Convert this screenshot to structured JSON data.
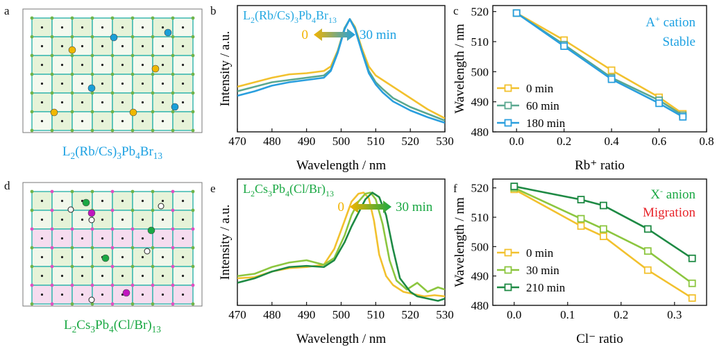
{
  "panels": {
    "a": {
      "label": "a",
      "caption_parts": [
        "L",
        "2",
        "(Rb/Cs)",
        "3",
        "Pb",
        "4",
        "Br",
        "13"
      ],
      "caption_color": "#1da1e2"
    },
    "d": {
      "label": "d",
      "caption_parts": [
        "L",
        "2",
        "Cs",
        "3",
        "Pb",
        "4",
        "(Cl/Br)",
        "13"
      ],
      "caption_color": "#1aa843"
    },
    "b": {
      "label": "b",
      "title_parts": [
        "L",
        "2",
        "(Rb/Cs)",
        "3",
        "Pb",
        "4",
        "Br",
        "13"
      ],
      "title_color": "#27a9e1",
      "arrow_start": "0",
      "arrow_end": "30 min",
      "start_color": "#f2b300",
      "end_color": "#1da1e2"
    },
    "e": {
      "label": "e",
      "title_parts": [
        "L",
        "2",
        "Cs",
        "3",
        "Pb",
        "4",
        "(Cl/Br)",
        "13"
      ],
      "title_color": "#1aa843",
      "arrow_start": "0",
      "arrow_end": "30 min",
      "start_color": "#f2b300",
      "end_color": "#1aa843"
    },
    "c": {
      "label": "c",
      "note1": "cation",
      "note1_prefix": "A",
      "note1_sup": "+",
      "note2": "Stable",
      "note_color": "#1da1e2"
    },
    "f": {
      "label": "f",
      "note1": "X",
      "note1_sup": "-",
      "note1_rest": "anion",
      "note2": "Migration",
      "note1_color": "#1aa843",
      "note2_color": "#e8242a"
    }
  },
  "chart_data": [
    {
      "id": "b",
      "type": "line",
      "xlabel": "Wavelength / nm",
      "ylabel": "Intensity / a.u.",
      "xlim": [
        470,
        530
      ],
      "xticks": [
        470,
        480,
        490,
        500,
        510,
        520,
        530
      ],
      "series": [
        {
          "color": "#f2c12e",
          "x": [
            470,
            475,
            480,
            485,
            490,
            495,
            497,
            499,
            501,
            502.5,
            504,
            506,
            508,
            510,
            512,
            515,
            520,
            525,
            530
          ],
          "y": [
            0.4,
            0.44,
            0.48,
            0.51,
            0.52,
            0.54,
            0.58,
            0.72,
            0.92,
            1.0,
            0.93,
            0.74,
            0.58,
            0.5,
            0.46,
            0.4,
            0.3,
            0.2,
            0.12
          ]
        },
        {
          "color": "#5aa890",
          "x": [
            470,
            475,
            480,
            485,
            490,
            495,
            497,
            499,
            501,
            502.5,
            504,
            506,
            508,
            510,
            512,
            515,
            520,
            525,
            530
          ],
          "y": [
            0.36,
            0.4,
            0.44,
            0.46,
            0.48,
            0.5,
            0.55,
            0.71,
            0.92,
            1.0,
            0.92,
            0.72,
            0.54,
            0.44,
            0.38,
            0.3,
            0.22,
            0.16,
            0.1
          ]
        },
        {
          "color": "#2a9fde",
          "x": [
            470,
            475,
            480,
            485,
            490,
            495,
            497,
            499,
            501,
            502.5,
            504,
            506,
            508,
            510,
            512,
            515,
            520,
            525,
            530
          ],
          "y": [
            0.32,
            0.36,
            0.41,
            0.44,
            0.46,
            0.48,
            0.54,
            0.7,
            0.91,
            1.0,
            0.91,
            0.71,
            0.52,
            0.42,
            0.35,
            0.27,
            0.19,
            0.13,
            0.08
          ]
        }
      ]
    },
    {
      "id": "e",
      "type": "line",
      "xlabel": "Wavelength / nm",
      "ylabel": "Intensity / a.u.",
      "xlim": [
        470,
        530
      ],
      "xticks": [
        470,
        480,
        490,
        500,
        510,
        520,
        530
      ],
      "series": [
        {
          "color": "#f2c12e",
          "x": [
            470,
            475,
            480,
            485,
            490,
            495,
            498,
            501,
            503,
            505,
            506.5,
            508,
            509.5,
            511,
            513,
            515,
            518,
            521,
            524,
            527,
            530
          ],
          "y": [
            0.24,
            0.25,
            0.3,
            0.33,
            0.34,
            0.36,
            0.5,
            0.75,
            0.92,
            0.99,
            1.0,
            0.95,
            0.75,
            0.45,
            0.26,
            0.18,
            0.12,
            0.1,
            0.08,
            0.09,
            0.08
          ]
        },
        {
          "color": "#8cc63f",
          "x": [
            470,
            475,
            480,
            485,
            490,
            495,
            498,
            501,
            503,
            505,
            507,
            508.5,
            510,
            512,
            514,
            516,
            519,
            522,
            525,
            528,
            530
          ],
          "y": [
            0.26,
            0.28,
            0.34,
            0.38,
            0.4,
            0.36,
            0.42,
            0.62,
            0.8,
            0.92,
            0.99,
            1.0,
            0.94,
            0.72,
            0.4,
            0.22,
            0.14,
            0.2,
            0.12,
            0.16,
            0.14
          ]
        },
        {
          "color": "#1e8a44",
          "x": [
            470,
            475,
            480,
            485,
            490,
            495,
            498,
            501,
            503,
            505,
            507,
            509,
            511,
            513,
            515,
            517,
            520,
            522,
            525,
            528,
            530
          ],
          "y": [
            0.2,
            0.24,
            0.3,
            0.34,
            0.35,
            0.34,
            0.4,
            0.56,
            0.7,
            0.82,
            0.94,
            1.0,
            0.96,
            0.8,
            0.5,
            0.24,
            0.12,
            0.08,
            0.06,
            0.04,
            0.06
          ]
        }
      ]
    },
    {
      "id": "c",
      "type": "line",
      "xlabel": "Rb⁺ ratio",
      "ylabel": "Wavelength / nm",
      "xlim": [
        -0.1,
        0.8
      ],
      "ylim": [
        480,
        522
      ],
      "xticks": [
        0.0,
        0.2,
        0.4,
        0.6,
        0.8
      ],
      "yticks": [
        480,
        490,
        500,
        510,
        520
      ],
      "series": [
        {
          "name": "0 min",
          "color": "#f2c12e",
          "x": [
            0.0,
            0.2,
            0.4,
            0.6,
            0.7
          ],
          "y": [
            519.5,
            510.5,
            500.5,
            491.5,
            486
          ]
        },
        {
          "name": "60 min",
          "color": "#5aa890",
          "x": [
            0.0,
            0.2,
            0.4,
            0.6,
            0.7
          ],
          "y": [
            519.5,
            509.0,
            498.0,
            490.5,
            485.5
          ]
        },
        {
          "name": "180 min",
          "color": "#2a9fde",
          "x": [
            0.0,
            0.2,
            0.4,
            0.6,
            0.7
          ],
          "y": [
            519.5,
            508.5,
            497.5,
            489.5,
            485
          ]
        }
      ]
    },
    {
      "id": "f",
      "type": "line",
      "xlabel": "Cl⁻ ratio",
      "ylabel": "Wavelength / nm",
      "xlim": [
        -0.04,
        0.36
      ],
      "ylim": [
        480,
        523
      ],
      "xticks": [
        0.0,
        0.1,
        0.2,
        0.3
      ],
      "yticks": [
        480,
        490,
        500,
        510,
        520
      ],
      "series": [
        {
          "name": "0 min",
          "color": "#f2c12e",
          "x": [
            0.0,
            0.125,
            0.167,
            0.25,
            0.333
          ],
          "y": [
            519.5,
            507.0,
            503.5,
            492.0,
            482.5
          ]
        },
        {
          "name": "30 min",
          "color": "#8cc63f",
          "x": [
            0.0,
            0.125,
            0.167,
            0.25,
            0.333
          ],
          "y": [
            520.0,
            509.5,
            506.0,
            498.5,
            487.5
          ]
        },
        {
          "name": "210 min",
          "color": "#1e8a44",
          "x": [
            0.0,
            0.125,
            0.167,
            0.25,
            0.333
          ],
          "y": [
            520.5,
            516.0,
            514.0,
            506.0,
            496.0
          ]
        }
      ]
    }
  ]
}
